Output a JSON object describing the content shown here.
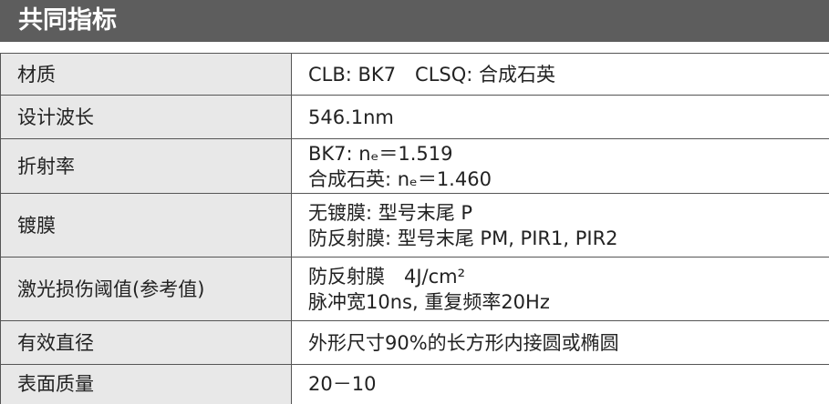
{
  "header": {
    "title": "共同指标"
  },
  "table": {
    "rows": [
      [
        "材质",
        [
          "CLB: BK7　CLSQ: 合成石英"
        ]
      ],
      [
        "设计波长",
        [
          "546.1nm"
        ]
      ],
      [
        "折射率",
        [
          "BK7: nₑ＝1.519",
          "合成石英: nₑ＝1.460"
        ]
      ],
      [
        "镀膜",
        [
          "无镀膜: 型号末尾 P",
          "防反射膜: 型号末尾 PM, PIR1, PIR2"
        ]
      ],
      [
        "激光损伤阈值(参考值)",
        [
          "防反射膜　4J/cm²",
          "脉冲宽10ns, 重复频率20Hz"
        ]
      ],
      [
        "有效直径",
        [
          "外形尺寸90%的长方形内接圆或椭圆"
        ]
      ],
      [
        "表面质量",
        [
          "20－10"
        ]
      ]
    ]
  }
}
